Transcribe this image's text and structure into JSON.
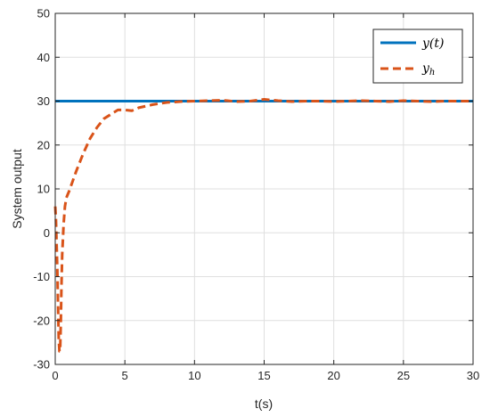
{
  "chart_data": {
    "type": "line",
    "title": "",
    "xlabel": "t(s)",
    "ylabel": "System output",
    "xlim": [
      0,
      30
    ],
    "ylim": [
      -30,
      50
    ],
    "xticks": [
      0,
      5,
      10,
      15,
      20,
      25,
      30
    ],
    "yticks": [
      -30,
      -20,
      -10,
      0,
      10,
      20,
      30,
      40,
      50
    ],
    "grid": true,
    "legend_position": "top-right",
    "series": [
      {
        "name": "y(t)",
        "legend_main": "y(t)",
        "legend_sub": "",
        "color": "#0072BD",
        "style": "solid",
        "x": [
          0,
          30
        ],
        "y": [
          30,
          30
        ]
      },
      {
        "name": "y_h",
        "legend_main": "y",
        "legend_sub": "h",
        "color": "#D95319",
        "style": "dashed",
        "x": [
          0,
          0.05,
          0.1,
          0.15,
          0.2,
          0.25,
          0.3,
          0.35,
          0.4,
          0.45,
          0.5,
          0.6,
          0.7,
          0.8,
          1.0,
          1.5,
          2.0,
          2.5,
          3.0,
          3.5,
          4.0,
          4.5,
          5.0,
          5.5,
          6.0,
          7.0,
          8.0,
          9.0,
          10.0,
          11.0,
          12.0,
          13.0,
          14.0,
          15.0,
          16.0,
          17.0,
          18.0,
          19.0,
          20.0,
          21.0,
          22.0,
          23.0,
          24.0,
          25.0,
          26.0,
          27.0,
          28.0,
          29.0,
          30.0
        ],
        "y": [
          6,
          3,
          -3,
          -8,
          -16,
          -24,
          -27,
          -27,
          -20,
          -12,
          -5,
          2,
          6,
          8,
          9.5,
          14,
          18,
          21.5,
          24,
          26,
          27,
          28,
          28,
          27.8,
          28.5,
          29.2,
          29.7,
          29.9,
          30.0,
          30.1,
          30.2,
          29.9,
          30.0,
          30.4,
          30.1,
          29.9,
          30.0,
          30.0,
          29.9,
          30.0,
          30.1,
          30.0,
          29.9,
          30.1,
          30.0,
          29.9,
          30.0,
          30.0,
          30.0
        ]
      }
    ]
  }
}
